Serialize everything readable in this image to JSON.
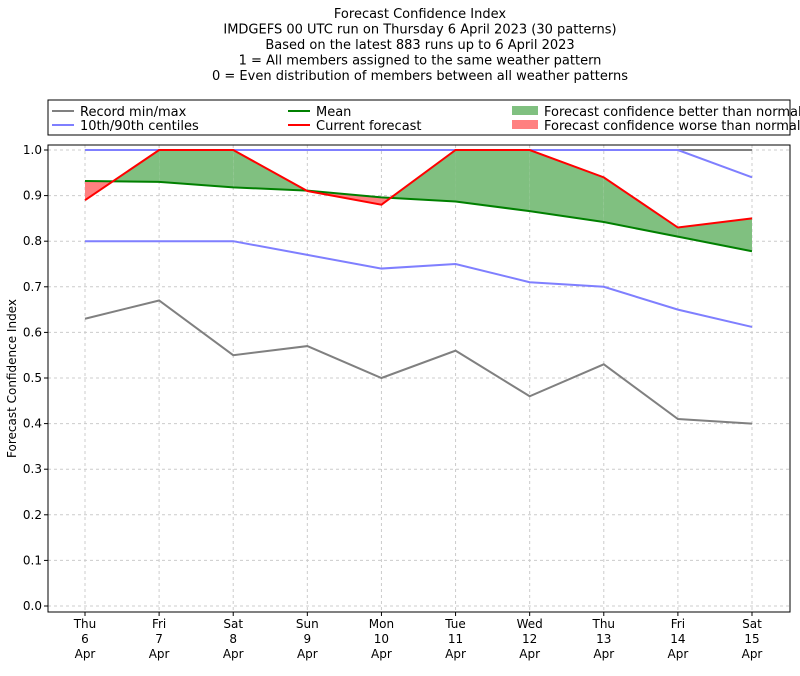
{
  "chart_data": {
    "type": "line",
    "title_lines": [
      "Forecast Confidence Index",
      "IMDGEFS 00 UTC run on Thursday 6 April 2023 (30 patterns)",
      "Based on the latest 883 runs up to 6 April 2023",
      "1 = All members assigned to the same weather pattern",
      "0 = Even distribution of members between all weather patterns"
    ],
    "ylabel": "Forecast Confidence Index",
    "ylim": [
      0,
      1.0
    ],
    "yticks": [
      "0.0",
      "0.1",
      "0.2",
      "0.3",
      "0.4",
      "0.5",
      "0.6",
      "0.7",
      "0.8",
      "0.9",
      "1.0"
    ],
    "grid": true,
    "legend_placement": "top, above plot",
    "categories": [
      [
        "Thu",
        "6",
        "Apr"
      ],
      [
        "Fri",
        "7",
        "Apr"
      ],
      [
        "Sat",
        "8",
        "Apr"
      ],
      [
        "Sun",
        "9",
        "Apr"
      ],
      [
        "Mon",
        "10",
        "Apr"
      ],
      [
        "Tue",
        "11",
        "Apr"
      ],
      [
        "Wed",
        "12",
        "Apr"
      ],
      [
        "Thu",
        "13",
        "Apr"
      ],
      [
        "Fri",
        "14",
        "Apr"
      ],
      [
        "Sat",
        "15",
        "Apr"
      ]
    ],
    "series": [
      {
        "name": "Record min/max",
        "color": "#808080",
        "part": "max",
        "values": [
          1.0,
          1.0,
          1.0,
          1.0,
          1.0,
          1.0,
          1.0,
          1.0,
          1.0,
          1.0
        ]
      },
      {
        "name": "Record min/max",
        "color": "#808080",
        "part": "min",
        "values": [
          0.63,
          0.67,
          0.55,
          0.57,
          0.5,
          0.56,
          0.46,
          0.53,
          0.41,
          0.4
        ]
      },
      {
        "name": "10th/90th centiles",
        "color": "#7f7fff",
        "part": "90th",
        "values": [
          1.0,
          1.0,
          1.0,
          1.0,
          1.0,
          1.0,
          1.0,
          1.0,
          1.0,
          0.94
        ]
      },
      {
        "name": "10th/90th centiles",
        "color": "#7f7fff",
        "part": "10th",
        "values": [
          0.8,
          0.8,
          0.8,
          0.77,
          0.74,
          0.75,
          0.71,
          0.7,
          0.65,
          0.612
        ]
      },
      {
        "name": "Mean",
        "color": "#008000",
        "values": [
          0.932,
          0.93,
          0.918,
          0.911,
          0.896,
          0.887,
          0.866,
          0.842,
          0.81,
          0.778
        ]
      },
      {
        "name": "Current forecast",
        "color": "#ff0000",
        "values": [
          0.89,
          1.0,
          1.0,
          0.91,
          0.88,
          1.0,
          1.0,
          0.94,
          0.83,
          0.85
        ]
      }
    ],
    "fills": [
      {
        "name": "Forecast confidence better than normal",
        "color": "#80c080"
      },
      {
        "name": "Forecast confidence worse than normal",
        "color": "#ff8080"
      }
    ],
    "legend": [
      {
        "label": "Record min/max",
        "color": "#808080",
        "kind": "line"
      },
      {
        "label": "Mean",
        "color": "#008000",
        "kind": "line"
      },
      {
        "label": "Forecast confidence better than normal",
        "color": "#80c080",
        "kind": "patch"
      },
      {
        "label": "10th/90th centiles",
        "color": "#7f7fff",
        "kind": "line"
      },
      {
        "label": "Current forecast",
        "color": "#ff0000",
        "kind": "line"
      },
      {
        "label": "Forecast confidence worse than normal",
        "color": "#ff8080",
        "kind": "patch"
      }
    ]
  }
}
